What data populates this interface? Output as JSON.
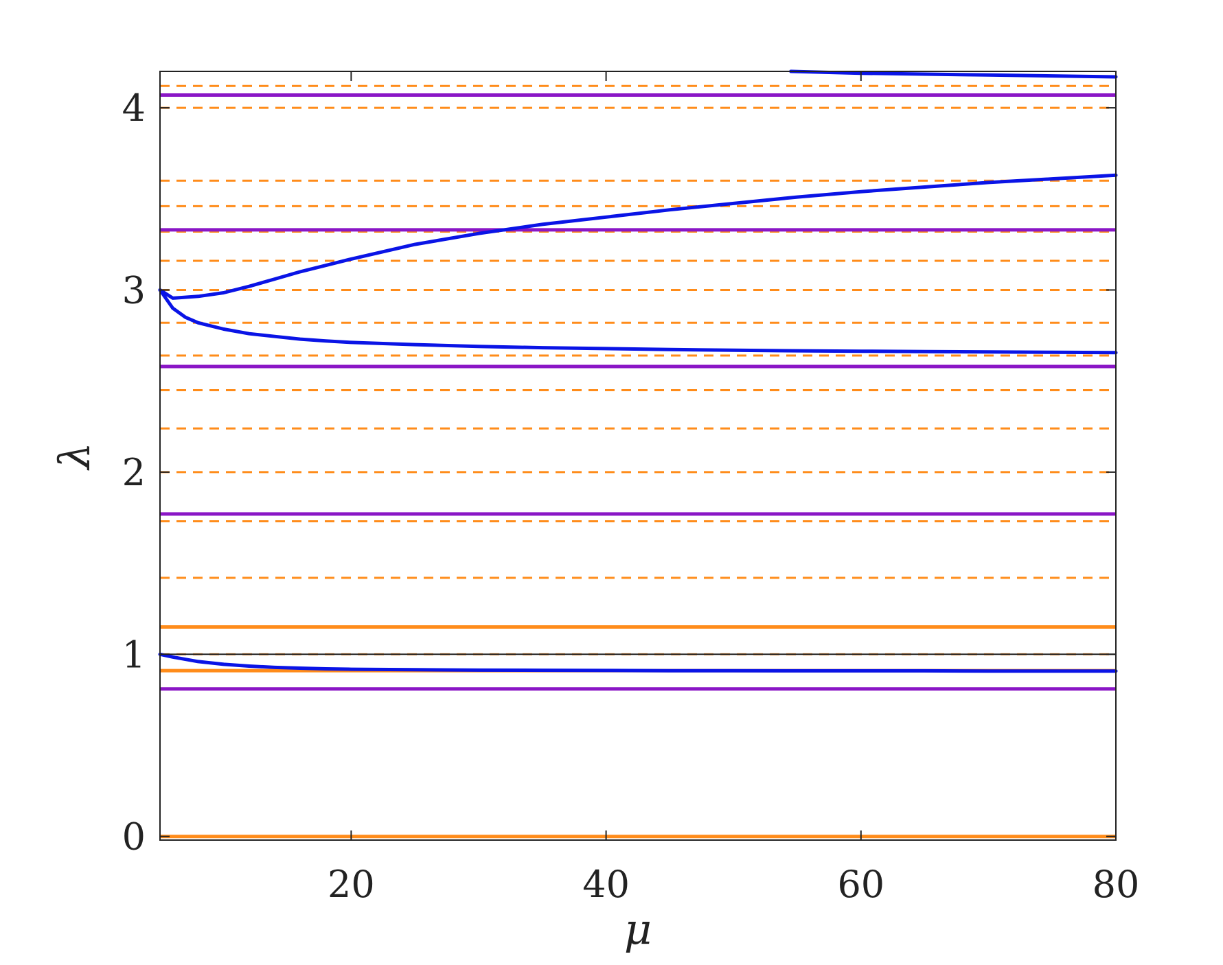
{
  "chart_data": {
    "type": "line",
    "title": "",
    "xlabel": "μ",
    "ylabel": "λ",
    "xlim": [
      5,
      80
    ],
    "ylim": [
      -0.02,
      4.2
    ],
    "x_ticks": [
      20,
      40,
      60,
      80
    ],
    "y_ticks": [
      0,
      1,
      2,
      3,
      4
    ],
    "x_tick_labels": [
      "20",
      "40",
      "60",
      "80"
    ],
    "y_tick_labels": [
      "0",
      "1",
      "2",
      "3",
      "4"
    ],
    "grid": false,
    "legend": "none",
    "colors": {
      "curve": "#0a14e6",
      "purple": "#8a16c6",
      "orange": "#ff8c1a",
      "axes": "#222222"
    },
    "horizontal_lines": {
      "purple_solid": [
        0.81,
        1.77,
        2.58,
        3.33,
        4.07
      ],
      "orange_solid": [
        0.0,
        0.91,
        1.15
      ],
      "orange_dashed": [
        1.0,
        1.42,
        1.73,
        2.0,
        2.24,
        2.45,
        2.64,
        2.82,
        3.0,
        3.16,
        3.32,
        3.46,
        3.6,
        4.0,
        4.12
      ],
      "black_solid": [
        1.0
      ]
    },
    "series": [
      {
        "x": [
          5,
          6,
          8,
          10,
          12,
          14,
          16,
          18,
          20,
          25,
          30,
          35,
          40,
          45,
          50,
          55,
          60,
          65,
          70,
          75,
          80
        ],
        "values": [
          1.0,
          0.985,
          0.96,
          0.945,
          0.935,
          0.928,
          0.924,
          0.92,
          0.918,
          0.915,
          0.913,
          0.912,
          0.911,
          0.91,
          0.91,
          0.909,
          0.909,
          0.909,
          0.908,
          0.908,
          0.908
        ]
      },
      {
        "x": [
          5,
          6,
          7,
          8,
          10,
          12,
          14,
          16,
          18,
          20,
          25,
          30,
          35,
          40,
          45,
          50,
          55,
          60,
          65,
          70,
          75,
          80
        ],
        "values": [
          3.0,
          2.9,
          2.85,
          2.82,
          2.785,
          2.76,
          2.745,
          2.73,
          2.72,
          2.712,
          2.7,
          2.69,
          2.683,
          2.678,
          2.673,
          2.669,
          2.666,
          2.664,
          2.662,
          2.66,
          2.658,
          2.656
        ]
      },
      {
        "x": [
          5,
          6,
          8,
          10,
          12,
          14,
          16,
          18,
          20,
          25,
          30,
          35,
          40,
          45,
          50,
          55,
          60,
          65,
          70,
          75,
          80
        ],
        "values": [
          3.0,
          2.955,
          2.965,
          2.985,
          3.02,
          3.06,
          3.1,
          3.135,
          3.17,
          3.25,
          3.31,
          3.36,
          3.4,
          3.44,
          3.475,
          3.51,
          3.54,
          3.565,
          3.59,
          3.61,
          3.63
        ]
      },
      {
        "x": [
          54.5,
          60,
          65,
          70,
          75,
          80
        ],
        "values": [
          4.2,
          4.19,
          4.185,
          4.18,
          4.175,
          4.17
        ]
      }
    ]
  }
}
